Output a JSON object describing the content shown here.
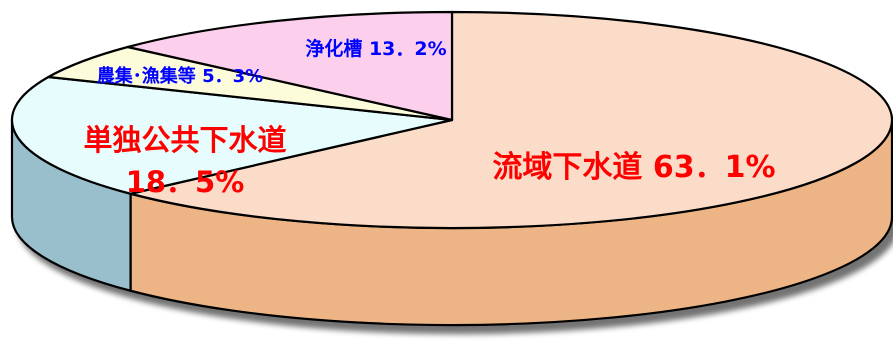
{
  "chart_data": {
    "type": "pie",
    "style": "3d",
    "title": "",
    "slices": [
      {
        "label": "流域下水道",
        "value": 63.1,
        "value_text": "63．1%",
        "color": "#FBDCC8",
        "side_color": "#EDB586",
        "label_color": "#FF0000"
      },
      {
        "label": "単独公共下水道",
        "value": 18.5,
        "value_text": "18．5%",
        "color": "#E6FCFD",
        "side_color": "#9ABFCC",
        "label_color": "#FF0000"
      },
      {
        "label": "農集･漁集等",
        "value": 5.3,
        "value_text": "5．3%",
        "color": "#FCFCDB",
        "side_color": "#D2D2A8",
        "label_color": "#0000FF"
      },
      {
        "label": "浄化槽",
        "value": 13.2,
        "value_text": "13．2%",
        "color": "#FCD0EC",
        "side_color": "#D7A5C5",
        "label_color": "#0000FF"
      }
    ]
  }
}
